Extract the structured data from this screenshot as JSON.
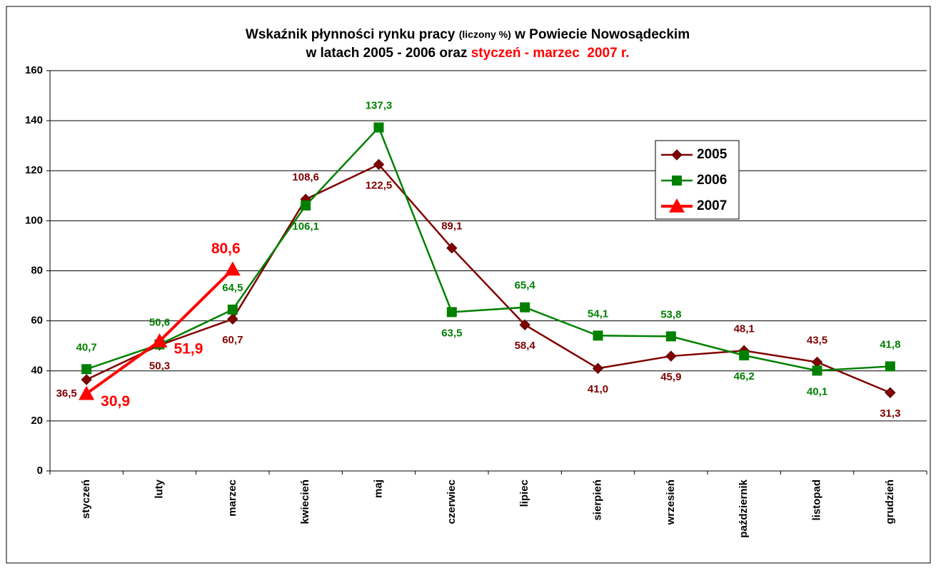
{
  "chart_data": {
    "type": "line",
    "title": [
      [
        "Wskaźnik płynności rynku pracy ",
        "(liczony %)",
        " w Powiecie Nowosądeckim"
      ],
      [
        "w latach 2005 - 2006 oraz ",
        "styczeń - marzec  2007 r."
      ]
    ],
    "categories": [
      "styczeń",
      "luty",
      "marzec",
      "kwiecień",
      "maj",
      "czerwiec",
      "lipiec",
      "sierpień",
      "wrzesień",
      "październik",
      "listopad",
      "grudzień"
    ],
    "series": [
      {
        "name": "2005",
        "color": "#800000",
        "marker": "diamond",
        "values": [
          36.5,
          50.3,
          60.7,
          108.6,
          122.5,
          89.1,
          58.4,
          41.0,
          45.9,
          48.1,
          43.5,
          31.3
        ],
        "value_labels": [
          "36,5",
          "50,3",
          "60,7",
          "108,6",
          "122,5",
          "89,1",
          "58,4",
          "41,0",
          "45,9",
          "48,1",
          "43,5",
          "31,3"
        ]
      },
      {
        "name": "2006",
        "color": "#008000",
        "marker": "square",
        "values": [
          40.7,
          50.6,
          64.5,
          106.1,
          137.3,
          63.5,
          65.4,
          54.1,
          53.8,
          46.2,
          40.1,
          41.8
        ],
        "value_labels": [
          "40,7",
          "50,6",
          "64,5",
          "106,1",
          "137,3",
          "63,5",
          "65,4",
          "54,1",
          "53,8",
          "46,2",
          "40,1",
          "41,8"
        ]
      },
      {
        "name": "2007",
        "color": "#ff0000",
        "marker": "triangle",
        "values": [
          30.9,
          51.9,
          80.6,
          null,
          null,
          null,
          null,
          null,
          null,
          null,
          null,
          null
        ],
        "value_labels": [
          "30,9",
          "51,9",
          "80,6",
          null,
          null,
          null,
          null,
          null,
          null,
          null,
          null,
          null
        ]
      }
    ],
    "ylim": [
      0,
      160
    ],
    "yticks": [
      0,
      20,
      40,
      60,
      80,
      100,
      120,
      140,
      160
    ],
    "grid": true,
    "legend": "upper right"
  }
}
